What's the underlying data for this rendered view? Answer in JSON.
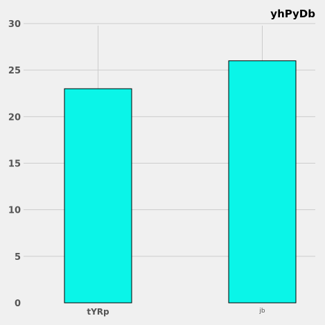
{
  "chart_data": {
    "type": "bar",
    "title": "yhPyDb",
    "categories": [
      "tYRp",
      "jb"
    ],
    "values": [
      23,
      26
    ],
    "ylim": [
      0,
      30
    ],
    "yticks": [
      0,
      5,
      10,
      15,
      20,
      25,
      30
    ],
    "grid": true,
    "bar_color": "#0af5e8",
    "bar_edge_color": "#000000",
    "background_color": "#f0f0f0",
    "grid_color": "#cccccc"
  }
}
